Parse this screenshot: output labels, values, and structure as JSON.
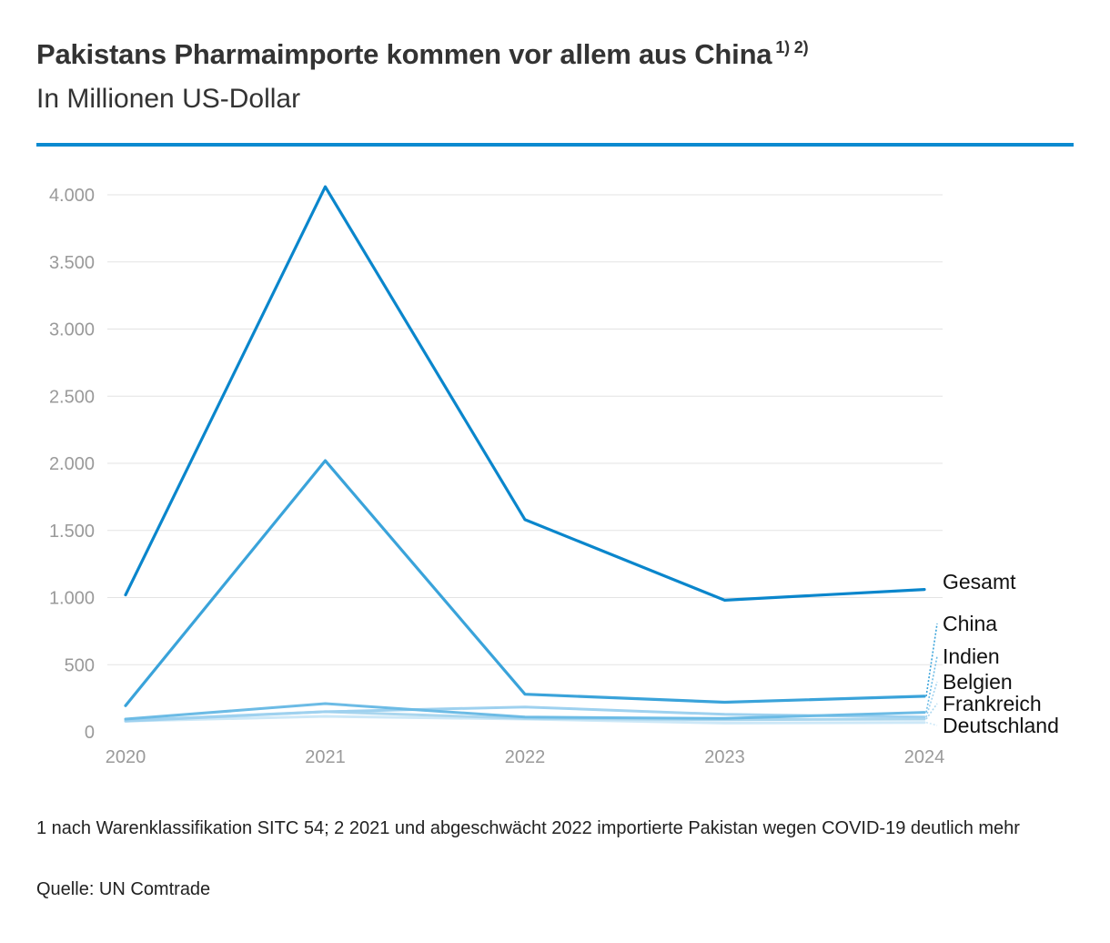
{
  "header": {
    "title": "Pakistans Pharmaimporte kommen vor allem aus China",
    "title_notes": "1) 2)",
    "subtitle": "In Millionen US-Dollar"
  },
  "footer": {
    "footnote": "1 nach Warenklassifikation SITC 54; 2 2021 und abgeschwächt 2022 importierte Pakistan wegen COVID-19 deutlich mehr",
    "source": "Quelle: UN Comtrade"
  },
  "colors": {
    "accent": "#0a8ad0",
    "grid": "#e3e3e3"
  },
  "chart_data": {
    "type": "line",
    "x": [
      "2020",
      "2021",
      "2022",
      "2023",
      "2024"
    ],
    "ylim": [
      0,
      4000
    ],
    "yticks": [
      0,
      500,
      1000,
      1500,
      2000,
      2500,
      3000,
      3500,
      4000
    ],
    "ytick_labels": [
      "0",
      "500",
      "1.000",
      "1.500",
      "2.000",
      "2.500",
      "3.000",
      "3.500",
      "4.000"
    ],
    "grid": true,
    "legend": "right (direct labels)",
    "series": [
      {
        "name": "Gesamt",
        "values": [
          1020,
          4060,
          1580,
          980,
          1060
        ],
        "color": "#0a86cc"
      },
      {
        "name": "China",
        "values": [
          195,
          2020,
          280,
          220,
          265
        ],
        "color": "#3aa3da"
      },
      {
        "name": "Indien",
        "values": [
          95,
          210,
          110,
          100,
          145
        ],
        "color": "#6cbbe5"
      },
      {
        "name": "Belgien",
        "values": [
          80,
          150,
          185,
          130,
          110
        ],
        "color": "#9ed1ef"
      },
      {
        "name": "Frankreich",
        "values": [
          85,
          150,
          100,
          90,
          95
        ],
        "color": "#aad6ee"
      },
      {
        "name": "Deutschland",
        "values": [
          80,
          115,
          95,
          65,
          70
        ],
        "color": "#cde8f7"
      }
    ]
  }
}
